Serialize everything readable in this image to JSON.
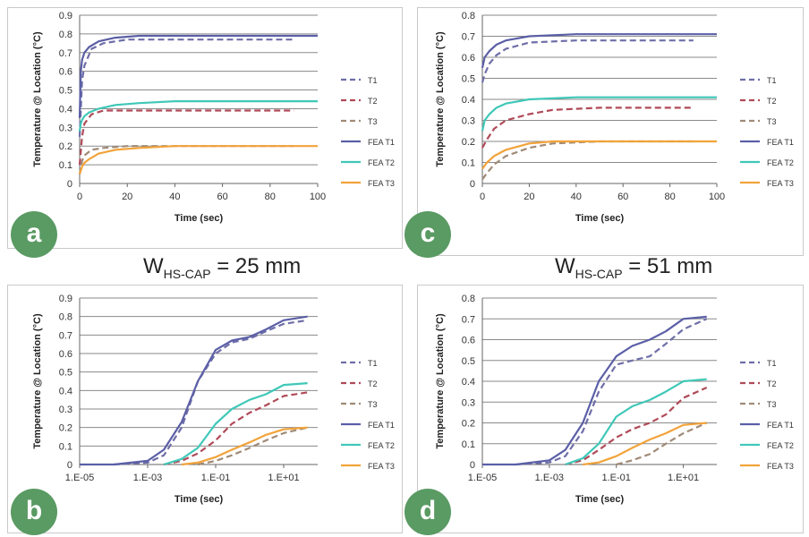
{
  "captions": {
    "top_left": {
      "prefix": "W",
      "sub": "HS-CAP",
      "value": " = 25 mm"
    },
    "top_right": {
      "prefix": "W",
      "sub": "HS-CAP",
      "value": " = 51 mm"
    }
  },
  "colors": {
    "T1": "#6e6ea8",
    "T2": "#b04a58",
    "T3": "#a08a76",
    "FEA T1": "#5b5fa6",
    "FEA T2": "#3fc8b8",
    "FEA T3": "#f2a33a"
  },
  "chart_data": [
    {
      "id": "a",
      "panel_letter": "a",
      "type": "line",
      "x_scale": "linear",
      "xlabel": "Time (sec)",
      "ylabel": "Temperature @ Location (°C)",
      "xlim": [
        0,
        100
      ],
      "ylim": [
        0,
        0.9
      ],
      "x_ticks": [
        "0",
        "20",
        "40",
        "60",
        "80",
        "100"
      ],
      "y_ticks": [
        "0",
        "0.1",
        "0.2",
        "0.3",
        "0.4",
        "0.5",
        "0.6",
        "0.7",
        "0.8",
        "0.9"
      ],
      "grid": true,
      "legend_position": "right",
      "series": [
        {
          "name": "T1",
          "dashed": true,
          "x": [
            0,
            1,
            2,
            5,
            10,
            20,
            40,
            60,
            90
          ],
          "y": [
            0.25,
            0.55,
            0.63,
            0.72,
            0.75,
            0.77,
            0.77,
            0.77,
            0.77
          ]
        },
        {
          "name": "T2",
          "dashed": true,
          "x": [
            0,
            1,
            2,
            5,
            10,
            20,
            40,
            60,
            90
          ],
          "y": [
            0.1,
            0.25,
            0.32,
            0.37,
            0.39,
            0.39,
            0.39,
            0.39,
            0.39
          ]
        },
        {
          "name": "T3",
          "dashed": true,
          "x": [
            0,
            1,
            2,
            5,
            10,
            20,
            40,
            60,
            90
          ],
          "y": [
            0.05,
            0.12,
            0.15,
            0.18,
            0.19,
            0.2,
            0.2,
            0.2,
            0.2
          ]
        },
        {
          "name": "FEA T1",
          "dashed": false,
          "x": [
            0,
            0.5,
            1,
            2,
            4,
            8,
            15,
            25,
            40,
            60,
            80,
            100
          ],
          "y": [
            0.35,
            0.6,
            0.66,
            0.7,
            0.73,
            0.76,
            0.78,
            0.79,
            0.79,
            0.79,
            0.79,
            0.79
          ]
        },
        {
          "name": "FEA T2",
          "dashed": false,
          "x": [
            0,
            0.5,
            1,
            2,
            4,
            8,
            15,
            25,
            40,
            60,
            80,
            100
          ],
          "y": [
            0.28,
            0.32,
            0.34,
            0.36,
            0.38,
            0.4,
            0.42,
            0.43,
            0.44,
            0.44,
            0.44,
            0.44
          ]
        },
        {
          "name": "FEA T3",
          "dashed": false,
          "x": [
            0,
            1,
            2,
            4,
            8,
            15,
            25,
            40,
            60,
            80,
            100
          ],
          "y": [
            0.05,
            0.09,
            0.11,
            0.13,
            0.16,
            0.18,
            0.19,
            0.2,
            0.2,
            0.2,
            0.2
          ]
        }
      ]
    },
    {
      "id": "c",
      "panel_letter": "c",
      "type": "line",
      "x_scale": "linear",
      "xlabel": "Time (sec)",
      "ylabel": "Temperature @ Location (°C)",
      "xlim": [
        0,
        100
      ],
      "ylim": [
        0,
        0.8
      ],
      "x_ticks": [
        "0",
        "20",
        "40",
        "60",
        "80",
        "100"
      ],
      "y_ticks": [
        "0",
        "0.1",
        "0.2",
        "0.3",
        "0.4",
        "0.5",
        "0.6",
        "0.7",
        "0.8"
      ],
      "grid": true,
      "legend_position": "right",
      "series": [
        {
          "name": "T1",
          "dashed": true,
          "x": [
            0,
            1,
            3,
            6,
            10,
            20,
            40,
            60,
            90
          ],
          "y": [
            0.48,
            0.52,
            0.57,
            0.61,
            0.64,
            0.67,
            0.68,
            0.68,
            0.68
          ]
        },
        {
          "name": "T2",
          "dashed": true,
          "x": [
            0,
            2,
            5,
            10,
            20,
            30,
            50,
            70,
            90
          ],
          "y": [
            0.17,
            0.21,
            0.26,
            0.3,
            0.33,
            0.35,
            0.36,
            0.36,
            0.36
          ]
        },
        {
          "name": "T3",
          "dashed": true,
          "x": [
            0,
            2,
            5,
            10,
            20,
            30,
            50,
            70,
            90
          ],
          "y": [
            0.02,
            0.05,
            0.09,
            0.13,
            0.17,
            0.19,
            0.2,
            0.2,
            0.2
          ]
        },
        {
          "name": "FEA T1",
          "dashed": false,
          "x": [
            0,
            1,
            3,
            6,
            10,
            20,
            40,
            60,
            80,
            100
          ],
          "y": [
            0.55,
            0.6,
            0.63,
            0.66,
            0.68,
            0.7,
            0.71,
            0.71,
            0.71,
            0.71
          ]
        },
        {
          "name": "FEA T2",
          "dashed": false,
          "x": [
            0,
            1,
            3,
            6,
            10,
            20,
            40,
            60,
            80,
            100
          ],
          "y": [
            0.25,
            0.3,
            0.33,
            0.36,
            0.38,
            0.4,
            0.41,
            0.41,
            0.41,
            0.41
          ]
        },
        {
          "name": "FEA T3",
          "dashed": false,
          "x": [
            0,
            2,
            5,
            10,
            20,
            30,
            50,
            70,
            100
          ],
          "y": [
            0.07,
            0.1,
            0.13,
            0.16,
            0.19,
            0.2,
            0.2,
            0.2,
            0.2
          ]
        }
      ]
    },
    {
      "id": "b",
      "panel_letter": "b",
      "type": "line",
      "x_scale": "log",
      "xlabel": "Time (sec)",
      "ylabel": "Temperature @ Location (°C)",
      "xlim": [
        1e-05,
        100
      ],
      "ylim": [
        0,
        0.9
      ],
      "x_tick_values": [
        1e-05,
        0.001,
        0.1,
        10
      ],
      "x_ticks": [
        "1.E-05",
        "1.E-03",
        "1.E-01",
        "1.E+01"
      ],
      "y_ticks": [
        "0",
        "0.1",
        "0.2",
        "0.3",
        "0.4",
        "0.5",
        "0.6",
        "0.7",
        "0.8",
        "0.9"
      ],
      "grid": true,
      "legend_position": "right",
      "series": [
        {
          "name": "T1",
          "dashed": true,
          "x": [
            0.0001,
            0.001,
            0.003,
            0.01,
            0.03,
            0.1,
            0.3,
            1,
            3,
            10,
            50
          ],
          "y": [
            0.0,
            0.01,
            0.05,
            0.2,
            0.45,
            0.6,
            0.66,
            0.68,
            0.72,
            0.76,
            0.78
          ]
        },
        {
          "name": "T2",
          "dashed": true,
          "x": [
            0.003,
            0.01,
            0.03,
            0.1,
            0.3,
            1,
            3,
            10,
            50
          ],
          "y": [
            0.0,
            0.02,
            0.06,
            0.13,
            0.22,
            0.28,
            0.32,
            0.37,
            0.39
          ]
        },
        {
          "name": "T3",
          "dashed": true,
          "x": [
            0.03,
            0.1,
            0.3,
            1,
            3,
            10,
            50
          ],
          "y": [
            0.0,
            0.02,
            0.05,
            0.09,
            0.13,
            0.17,
            0.2
          ]
        },
        {
          "name": "FEA T1",
          "dashed": false,
          "x": [
            1e-05,
            0.0001,
            0.001,
            0.003,
            0.01,
            0.03,
            0.1,
            0.3,
            1,
            3,
            10,
            50
          ],
          "y": [
            0.0,
            0.0,
            0.02,
            0.08,
            0.23,
            0.45,
            0.62,
            0.67,
            0.69,
            0.73,
            0.78,
            0.8
          ]
        },
        {
          "name": "FEA T2",
          "dashed": false,
          "x": [
            0.003,
            0.01,
            0.03,
            0.1,
            0.3,
            1,
            3,
            10,
            50
          ],
          "y": [
            0.0,
            0.03,
            0.09,
            0.22,
            0.3,
            0.35,
            0.38,
            0.43,
            0.44
          ]
        },
        {
          "name": "FEA T3",
          "dashed": false,
          "x": [
            0.01,
            0.03,
            0.1,
            0.3,
            1,
            3,
            10,
            50
          ],
          "y": [
            0.0,
            0.01,
            0.04,
            0.08,
            0.12,
            0.16,
            0.19,
            0.2
          ]
        }
      ]
    },
    {
      "id": "d",
      "panel_letter": "d",
      "type": "line",
      "x_scale": "log",
      "xlabel": "Time (sec)",
      "ylabel": "Temperature @ Location (°C)",
      "xlim": [
        1e-05,
        100
      ],
      "ylim": [
        0,
        0.8
      ],
      "x_tick_values": [
        1e-05,
        0.001,
        0.1,
        10
      ],
      "x_ticks": [
        "1.E-05",
        "1.E-03",
        "1.E-01",
        "1.E+01"
      ],
      "y_ticks": [
        "0",
        "0.1",
        "0.2",
        "0.3",
        "0.4",
        "0.5",
        "0.6",
        "0.7",
        "0.8"
      ],
      "grid": true,
      "legend_position": "right",
      "series": [
        {
          "name": "T1",
          "dashed": true,
          "x": [
            0.0001,
            0.001,
            0.003,
            0.01,
            0.03,
            0.1,
            0.3,
            1,
            3,
            10,
            50
          ],
          "y": [
            0.0,
            0.01,
            0.04,
            0.16,
            0.35,
            0.48,
            0.5,
            0.52,
            0.58,
            0.65,
            0.7
          ]
        },
        {
          "name": "T2",
          "dashed": true,
          "x": [
            0.003,
            0.01,
            0.03,
            0.1,
            0.3,
            1,
            3,
            10,
            50
          ],
          "y": [
            0.0,
            0.02,
            0.07,
            0.13,
            0.17,
            0.2,
            0.24,
            0.32,
            0.37
          ]
        },
        {
          "name": "T3",
          "dashed": true,
          "x": [
            0.1,
            0.3,
            1,
            3,
            10,
            50
          ],
          "y": [
            0.0,
            0.02,
            0.05,
            0.1,
            0.15,
            0.2
          ]
        },
        {
          "name": "FEA T1",
          "dashed": false,
          "x": [
            1e-05,
            0.0001,
            0.001,
            0.003,
            0.01,
            0.03,
            0.1,
            0.3,
            1,
            3,
            10,
            50
          ],
          "y": [
            0.0,
            0.0,
            0.02,
            0.07,
            0.2,
            0.4,
            0.52,
            0.57,
            0.6,
            0.64,
            0.7,
            0.71
          ]
        },
        {
          "name": "FEA T2",
          "dashed": false,
          "x": [
            0.003,
            0.01,
            0.03,
            0.1,
            0.3,
            1,
            3,
            10,
            50
          ],
          "y": [
            0.0,
            0.03,
            0.1,
            0.23,
            0.28,
            0.31,
            0.35,
            0.4,
            0.41
          ]
        },
        {
          "name": "FEA T3",
          "dashed": false,
          "x": [
            0.01,
            0.03,
            0.1,
            0.3,
            1,
            3,
            10,
            50
          ],
          "y": [
            0.0,
            0.01,
            0.04,
            0.08,
            0.12,
            0.15,
            0.19,
            0.2
          ]
        }
      ]
    }
  ]
}
